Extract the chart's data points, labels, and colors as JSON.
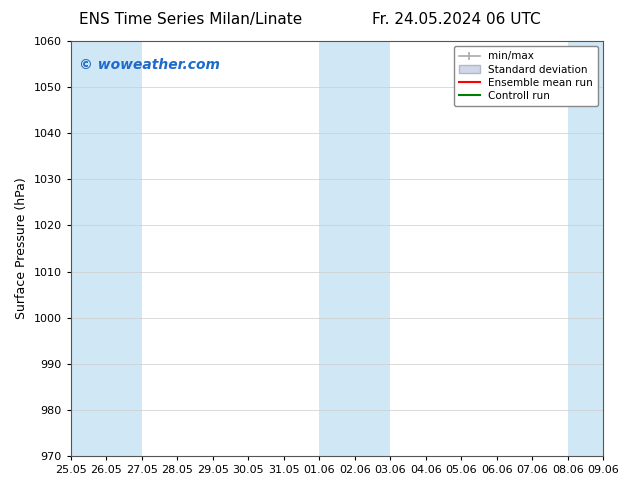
{
  "title_left": "ENS Time Series Milan/Linate",
  "title_right": "Fr. 24.05.2024 06 UTC",
  "ylabel": "Surface Pressure (hPa)",
  "ylim": [
    970,
    1060
  ],
  "yticks": [
    970,
    980,
    990,
    1000,
    1010,
    1020,
    1030,
    1040,
    1050,
    1060
  ],
  "xlim": [
    0,
    15
  ],
  "xtick_positions": [
    0,
    1,
    2,
    3,
    4,
    5,
    6,
    7,
    8,
    9,
    10,
    11,
    12,
    13,
    14,
    15
  ],
  "xlabel_dates": [
    "25.05",
    "26.05",
    "27.05",
    "28.05",
    "29.05",
    "30.05",
    "31.05",
    "01.06",
    "02.06",
    "03.06",
    "04.06",
    "05.06",
    "06.06",
    "07.06",
    "08.06",
    "09.06"
  ],
  "shaded_bands": [
    {
      "xmin": 0,
      "xmax": 2,
      "color": "#d0e8f5"
    },
    {
      "xmin": 7,
      "xmax": 9,
      "color": "#d0e8f5"
    },
    {
      "xmin": 14,
      "xmax": 15,
      "color": "#d0e8f5"
    }
  ],
  "bg_color": "#ffffff",
  "plot_bg_color": "#ffffff",
  "watermark_text": "© woweather.com",
  "watermark_color": "#1e6bcc",
  "legend_items": [
    {
      "label": "min/max",
      "color": "#aaaaaa",
      "type": "errbar"
    },
    {
      "label": "Standard deviation",
      "color": "#d0d8e8",
      "type": "fill"
    },
    {
      "label": "Ensemble mean run",
      "color": "#ff0000",
      "type": "line"
    },
    {
      "label": "Controll run",
      "color": "#008000",
      "type": "line"
    }
  ],
  "title_fontsize": 11,
  "tick_fontsize": 8,
  "label_fontsize": 9,
  "watermark_fontsize": 10
}
